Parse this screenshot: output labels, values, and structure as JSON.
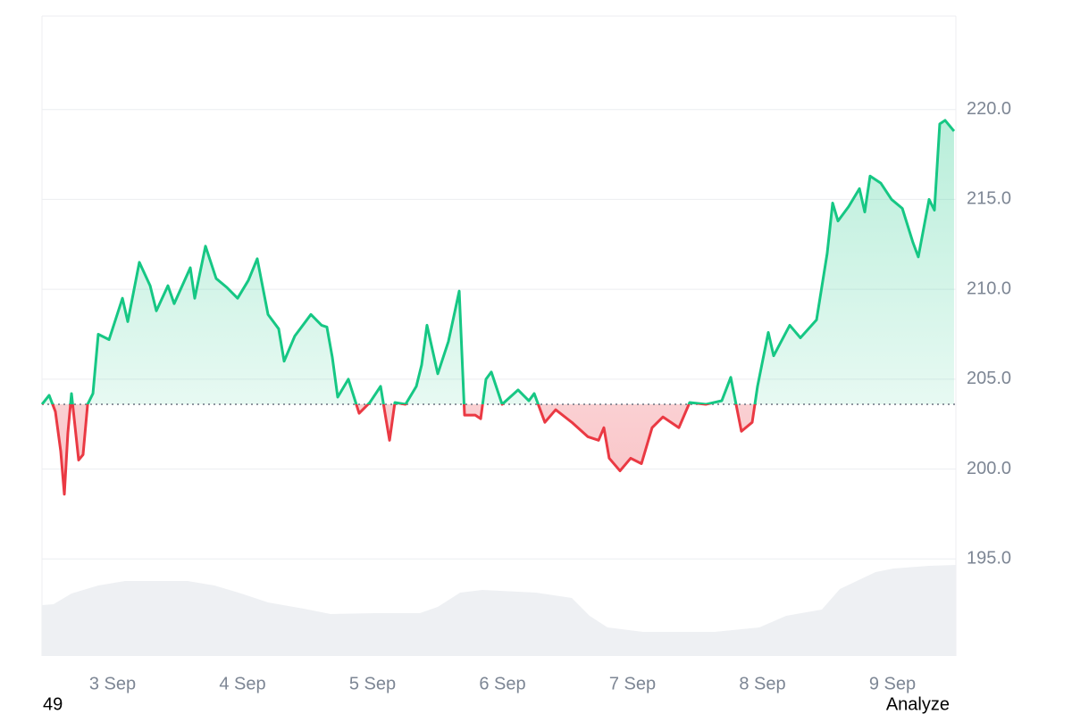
{
  "chart_data": {
    "type": "line",
    "x": [
      2.457,
      2.512,
      2.56,
      2.601,
      2.629,
      2.656,
      2.684,
      2.739,
      2.773,
      2.808,
      2.849,
      2.89,
      2.973,
      3.076,
      3.117,
      3.206,
      3.289,
      3.337,
      3.426,
      3.474,
      3.598,
      3.632,
      3.715,
      3.797,
      3.88,
      3.962,
      4.045,
      4.113,
      4.196,
      4.278,
      4.32,
      4.402,
      4.526,
      4.608,
      4.649,
      4.691,
      4.732,
      4.814,
      4.897,
      4.979,
      5.062,
      5.103,
      5.131,
      5.172,
      5.254,
      5.337,
      5.378,
      5.419,
      5.502,
      5.584,
      5.667,
      5.708,
      5.79,
      5.832,
      5.873,
      5.914,
      5.997,
      6.12,
      6.203,
      6.244,
      6.326,
      6.409,
      6.533,
      6.656,
      6.739,
      6.78,
      6.821,
      6.904,
      6.986,
      7.069,
      7.151,
      7.234,
      7.357,
      7.44,
      7.564,
      7.687,
      7.756,
      7.838,
      7.921,
      7.962,
      8.045,
      8.086,
      8.21,
      8.292,
      8.416,
      8.498,
      8.54,
      8.581,
      8.663,
      8.746,
      8.787,
      8.828,
      8.911,
      8.993,
      9.076,
      9.158,
      9.199,
      9.282,
      9.323,
      9.364,
      9.405,
      9.474
    ],
    "values": [
      203.6,
      204.1,
      203.2,
      201,
      198.6,
      202,
      204.2,
      200.5,
      200.8,
      203.6,
      204.2,
      207.5,
      207.2,
      209.5,
      208.2,
      211.5,
      210.2,
      208.8,
      210.2,
      209.2,
      211.2,
      209.5,
      212.4,
      210.6,
      210.1,
      209.5,
      210.5,
      211.7,
      208.6,
      207.8,
      206,
      207.4,
      208.6,
      208,
      207.9,
      206.2,
      204,
      205,
      203.1,
      203.7,
      204.6,
      202.8,
      201.6,
      203.7,
      203.6,
      204.6,
      205.8,
      208,
      205.3,
      207.1,
      209.9,
      203,
      203,
      202.8,
      205,
      205.4,
      203.6,
      204.4,
      203.8,
      204.2,
      202.6,
      203.3,
      202.6,
      201.8,
      201.6,
      202.3,
      200.6,
      199.9,
      200.6,
      200.3,
      202.3,
      202.9,
      202.3,
      203.7,
      203.6,
      203.8,
      205.1,
      202.1,
      202.6,
      204.6,
      207.6,
      206.3,
      208,
      207.3,
      208.3,
      212,
      214.8,
      213.8,
      214.6,
      215.6,
      214.3,
      216.3,
      215.9,
      215,
      214.5,
      212.6,
      211.8,
      215,
      214.4,
      219.2,
      219.4,
      218.8
    ],
    "baseline": 203.6,
    "up_color": "#16c784",
    "down_color": "#ea3943",
    "xlim": [
      2.457,
      9.488
    ],
    "xticks": [
      {
        "value": 3,
        "label": "3 Sep"
      },
      {
        "value": 4,
        "label": "4 Sep"
      },
      {
        "value": 5,
        "label": "5 Sep"
      },
      {
        "value": 6,
        "label": "6 Sep"
      },
      {
        "value": 7,
        "label": "7 Sep"
      },
      {
        "value": 8,
        "label": "8 Sep"
      },
      {
        "value": 9,
        "label": "9 Sep"
      }
    ],
    "ylim": [
      189.6,
      225.2
    ],
    "yticks": [
      {
        "value": 195,
        "label": "195.0"
      },
      {
        "value": 200,
        "label": "200.0"
      },
      {
        "value": 205,
        "label": "205.0"
      },
      {
        "value": 210,
        "label": "210.0"
      },
      {
        "value": 215,
        "label": "215.0"
      },
      {
        "value": 220,
        "label": "220.0"
      }
    ],
    "grid": true,
    "volume": {
      "color": "#eef0f3",
      "x": [
        2.457,
        2.546,
        2.684,
        2.89,
        3.096,
        3.577,
        3.784,
        3.99,
        4.196,
        4.471,
        4.677,
        5.021,
        5.364,
        5.502,
        5.674,
        5.845,
        6.258,
        6.533,
        6.67,
        6.808,
        7.082,
        7.632,
        7.976,
        8.182,
        8.457,
        8.595,
        8.87,
        9.007,
        9.282,
        9.488
      ],
      "values": [
        57,
        58,
        70,
        79,
        84,
        84,
        79,
        70,
        60,
        53,
        47,
        48,
        48,
        55,
        71,
        74,
        71,
        65,
        45,
        32,
        27,
        27,
        32,
        45,
        52,
        75,
        94,
        98,
        101,
        102
      ]
    },
    "footer_left": "49",
    "footer_right": "Analyze"
  }
}
